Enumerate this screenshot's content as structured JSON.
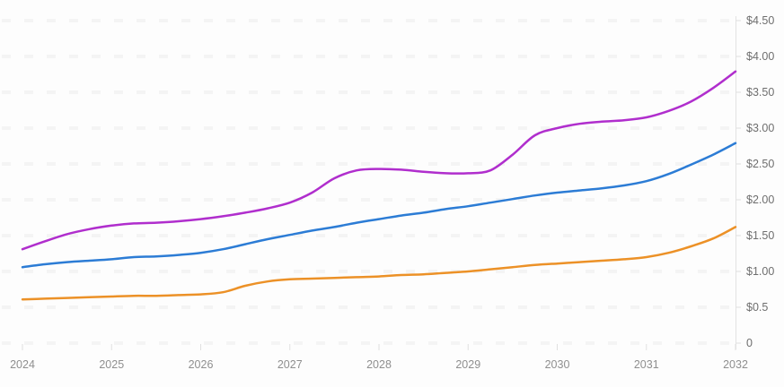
{
  "chart_data": {
    "type": "line",
    "title": "",
    "xlabel": "",
    "ylabel": "",
    "xlim": [
      2024,
      2032
    ],
    "ylim": [
      0,
      4.5
    ],
    "grid": "dashed-horizontal",
    "legend": "none",
    "y_axis_side": "right",
    "x_tick_labels": [
      "2024",
      "2025",
      "2026",
      "2027",
      "2028",
      "2029",
      "2030",
      "2031",
      "2032"
    ],
    "x_tick_values": [
      2024,
      2025,
      2026,
      2027,
      2028,
      2029,
      2030,
      2031,
      2032
    ],
    "y_tick_labels": [
      "0",
      "$0.5",
      "$1.00",
      "$1.50",
      "$2.00",
      "$2.50",
      "$3.00",
      "$3.50",
      "$4.00",
      "$4.50"
    ],
    "y_tick_values": [
      0,
      0.5,
      1.0,
      1.5,
      2.0,
      2.5,
      3.0,
      3.5,
      4.0,
      4.5
    ],
    "x": [
      2024,
      2024.25,
      2024.5,
      2024.75,
      2025,
      2025.25,
      2025.5,
      2025.75,
      2026,
      2026.25,
      2026.5,
      2026.75,
      2027,
      2027.25,
      2027.5,
      2027.75,
      2028,
      2028.25,
      2028.5,
      2028.75,
      2029,
      2029.25,
      2029.5,
      2029.75,
      2030,
      2030.25,
      2030.5,
      2030.75,
      2031,
      2031.25,
      2031.5,
      2031.75,
      2032
    ],
    "series": [
      {
        "name": "magenta",
        "color": "#b02ecd",
        "values": [
          1.31,
          1.42,
          1.52,
          1.59,
          1.64,
          1.67,
          1.68,
          1.7,
          1.73,
          1.77,
          1.82,
          1.88,
          1.96,
          2.1,
          2.3,
          2.41,
          2.43,
          2.42,
          2.39,
          2.37,
          2.37,
          2.41,
          2.63,
          2.9,
          3.0,
          3.06,
          3.09,
          3.11,
          3.15,
          3.24,
          3.37,
          3.56,
          3.79
        ]
      },
      {
        "name": "blue",
        "color": "#2c7cd5",
        "values": [
          1.06,
          1.1,
          1.13,
          1.15,
          1.17,
          1.2,
          1.21,
          1.23,
          1.26,
          1.31,
          1.38,
          1.45,
          1.51,
          1.57,
          1.62,
          1.68,
          1.73,
          1.78,
          1.82,
          1.87,
          1.91,
          1.96,
          2.01,
          2.06,
          2.1,
          2.13,
          2.16,
          2.2,
          2.26,
          2.36,
          2.49,
          2.63,
          2.79
        ]
      },
      {
        "name": "orange",
        "color": "#ec9127",
        "values": [
          0.61,
          0.62,
          0.63,
          0.64,
          0.65,
          0.66,
          0.66,
          0.67,
          0.68,
          0.71,
          0.8,
          0.86,
          0.89,
          0.9,
          0.91,
          0.92,
          0.93,
          0.95,
          0.96,
          0.98,
          1.0,
          1.03,
          1.06,
          1.09,
          1.11,
          1.13,
          1.15,
          1.17,
          1.2,
          1.26,
          1.35,
          1.46,
          1.62
        ]
      }
    ],
    "colors": {
      "background": "#fdfdfd",
      "gridline": "#f4f4f4",
      "axis": "#e3e3e3",
      "tick": "#e0e0e0",
      "y_label_text": "#6e6e6e",
      "x_label_text": "#8f8f8f"
    }
  }
}
